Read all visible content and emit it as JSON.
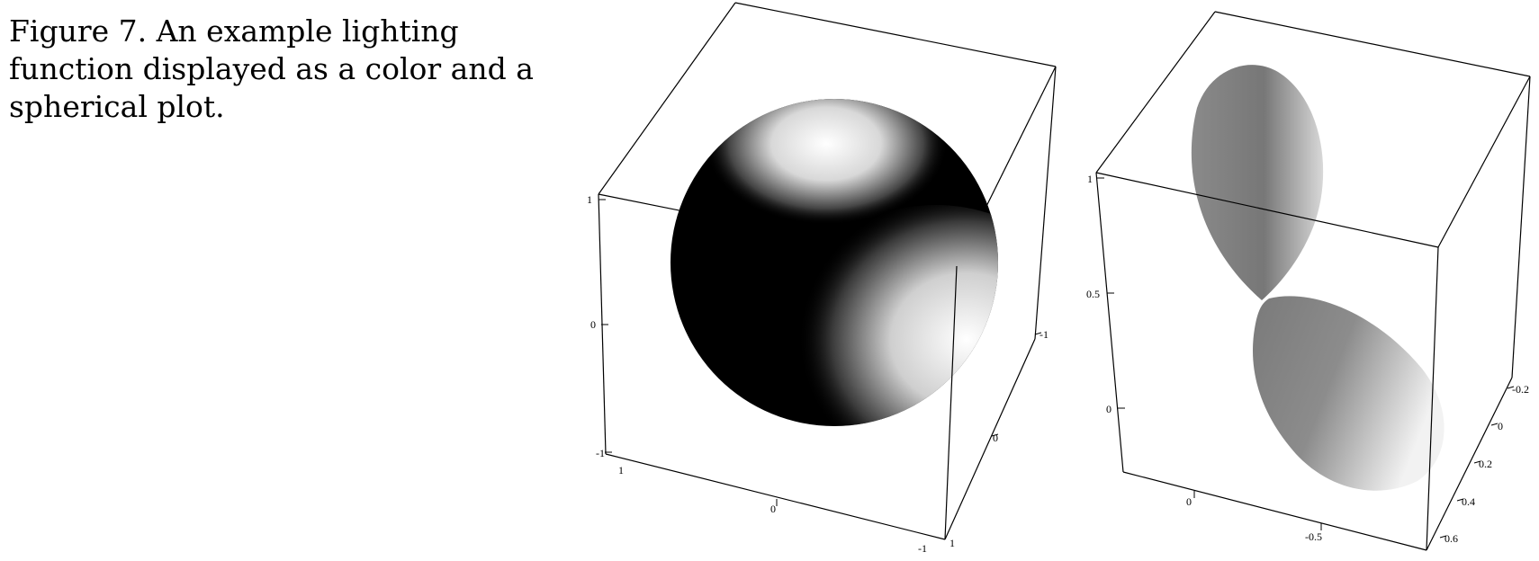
{
  "caption": {
    "lines": [
      "Figure 7. An example lighting",
      "function displayed as a color and a",
      "spherical plot."
    ]
  },
  "left_plot": {
    "description_type": "3d-color-sphere",
    "ticks": {
      "vertical": [
        "1",
        "0",
        "-1"
      ],
      "front": [
        "1",
        "0",
        "-1"
      ],
      "side": [
        "1",
        "0",
        "-1"
      ]
    }
  },
  "right_plot": {
    "description_type": "3d-spherical-plot",
    "ticks": {
      "vertical": [
        "1",
        "0.5",
        "0"
      ],
      "front": [
        "0",
        "-0.5"
      ],
      "side": [
        "-0.2",
        "0",
        "0.2",
        "0.4",
        "0.6"
      ]
    }
  },
  "colors": {
    "box": "#000000",
    "lobe": "#7a7a7a",
    "highlight": "#ffffff"
  }
}
